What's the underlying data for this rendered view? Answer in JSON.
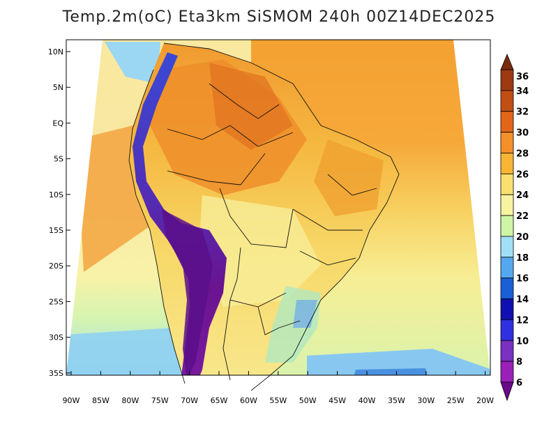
{
  "title": "Temp.2m(oC) Eta3km SiSMOM 240h 00Z14DEC2025",
  "lat_labels": [
    "10N",
    "5N",
    "EQ",
    "5S",
    "10S",
    "15S",
    "20S",
    "25S",
    "30S",
    "35S"
  ],
  "lon_labels": [
    "90W",
    "85W",
    "80W",
    "75W",
    "70W",
    "65W",
    "60W",
    "55W",
    "50W",
    "45W",
    "40W",
    "35W",
    "30W",
    "25W",
    "20W"
  ],
  "colorbar": {
    "labels": [
      "36",
      "34",
      "32",
      "30",
      "28",
      "26",
      "24",
      "22",
      "20",
      "18",
      "16",
      "14",
      "12",
      "10",
      "8",
      "6"
    ],
    "colors": [
      "#7a2a10",
      "#9c3a12",
      "#c14e14",
      "#e2661a",
      "#f3902a",
      "#f7b535",
      "#f7e070",
      "#f7f3a0",
      "#cdf5a5",
      "#a0e0f5",
      "#55a8ee",
      "#1a5fd5",
      "#1010b0",
      "#3030e0",
      "#7a30c0",
      "#9a20b8",
      "#6a0a8a"
    ]
  },
  "legend": {
    "ocean_south": "#a8e0f8",
    "ocean_subtropical": "#f5ec95",
    "ocean_tropical": "#f6a838",
    "land_hot": "#ee8a28",
    "land_warm": "#f7c848",
    "land_mild": "#fbe78a",
    "andes_cold": "#6a1a9a",
    "andes_cool": "#3f48d8"
  }
}
